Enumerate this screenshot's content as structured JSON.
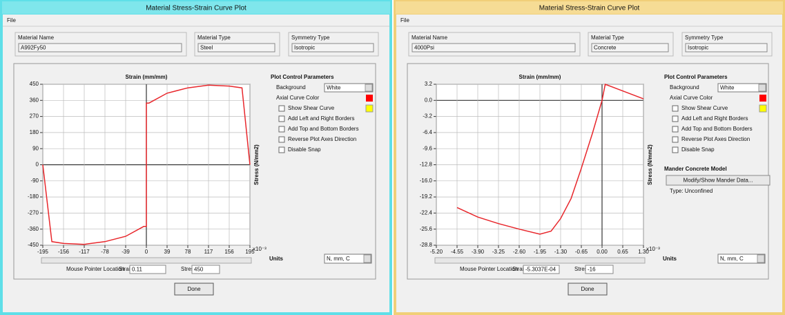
{
  "windows": [
    {
      "title": "Material Stress-Strain Curve Plot",
      "menu": "File",
      "fields": [
        {
          "label": "Material Name",
          "value": "A992Fy50"
        },
        {
          "label": "Material Type",
          "value": "Steel"
        },
        {
          "label": "Symmetry Type",
          "value": "Isotropic"
        }
      ],
      "controls": {
        "heading": "Plot Control Parameters",
        "background_label": "Background",
        "background_value": "White",
        "axial_label": "Axial Curve Color",
        "axial_color": "#ff0000",
        "shear_color": "#ffff00",
        "checkboxes": [
          "Show Shear Curve",
          "Add Left and Right Borders",
          "Add Top and Bottom Borders",
          "Reverse Plot Axes Direction",
          "Disable Snap"
        ]
      },
      "units_label": "Units",
      "units_value": "N, mm, C",
      "mouse": {
        "label": "Mouse Pointer Location",
        "strain_label": "Strain",
        "strain_value": "0.11",
        "stress_label": "Stress",
        "stress_value": "450"
      },
      "button": "Done",
      "chart_data": {
        "type": "line",
        "title": "Strain (mm/mm)",
        "y_label": "Stress (N/mm2)",
        "x_multiplier": "x10⁻³",
        "xlim": [
          -195,
          195
        ],
        "ylim": [
          -450,
          450
        ],
        "grid": true,
        "xticks": [
          -195,
          -156,
          -117,
          -78,
          -39,
          0,
          39,
          78,
          117,
          156,
          195
        ],
        "yticks": [
          -450,
          -360,
          -270,
          -180,
          -90,
          0,
          90,
          180,
          270,
          360,
          450
        ],
        "series": [
          {
            "color": "#e8262b",
            "x": [
              -195,
              -178,
              -156,
              -117,
              -78,
              -39,
              -5,
              0,
              0,
              5,
              39,
              78,
              117,
              156,
              180,
              195
            ],
            "values": [
              0,
              -430,
              -440,
              -445,
              -430,
              -400,
              -345,
              -345,
              345,
              345,
              400,
              430,
              445,
              440,
              430,
              0
            ]
          }
        ]
      }
    },
    {
      "title": "Material Stress-Strain Curve Plot",
      "menu": "File",
      "fields": [
        {
          "label": "Material Name",
          "value": "4000Psi"
        },
        {
          "label": "Material Type",
          "value": "Concrete"
        },
        {
          "label": "Symmetry Type",
          "value": "Isotropic"
        }
      ],
      "controls": {
        "heading": "Plot Control Parameters",
        "background_label": "Background",
        "background_value": "White",
        "axial_label": "Axial Curve Color",
        "axial_color": "#ff0000",
        "shear_color": "#ffff00",
        "checkboxes": [
          "Show Shear Curve",
          "Add Left and Right Borders",
          "Add Top and Bottom Borders",
          "Reverse Plot Axes Direction",
          "Disable Snap"
        ],
        "mander_heading": "Mander Concrete Model",
        "mander_button": "Modify/Show Mander Data...",
        "mander_type": "Type: Unconfined"
      },
      "units_label": "Units",
      "units_value": "N, mm, C",
      "mouse": {
        "label": "Mouse Pointer Location",
        "strain_label": "Strain",
        "strain_value": "-5.3037E-04",
        "stress_label": "Stress",
        "stress_value": "-16"
      },
      "button": "Done",
      "chart_data": {
        "type": "line",
        "title": "Strain (mm/mm)",
        "y_label": "Stress (N/mm2)",
        "x_multiplier": "x10⁻³",
        "xlim": [
          -5.2,
          1.3
        ],
        "ylim": [
          -28.8,
          3.2
        ],
        "grid": true,
        "xticks": [
          {
            "value": -5.2,
            "label": "-5.20"
          },
          {
            "value": -4.55,
            "label": "-4.55"
          },
          {
            "value": -3.9,
            "label": "-3.90"
          },
          {
            "value": -3.25,
            "label": "-3.25"
          },
          {
            "value": -2.6,
            "label": "-2.60"
          },
          {
            "value": -1.95,
            "label": "-1.95"
          },
          {
            "value": -1.3,
            "label": "-1.30"
          },
          {
            "value": -0.65,
            "label": "-0.65"
          },
          {
            "value": 0,
            "label": "0.00"
          },
          {
            "value": 0.65,
            "label": "0.65"
          },
          {
            "value": 1.3,
            "label": "1.30"
          }
        ],
        "yticks": [
          {
            "value": -28.8,
            "label": "-28.8"
          },
          {
            "value": -25.6,
            "label": "-25.6"
          },
          {
            "value": -22.4,
            "label": "-22.4"
          },
          {
            "value": -19.2,
            "label": "-19.2"
          },
          {
            "value": -16,
            "label": "-16.0"
          },
          {
            "value": -12.8,
            "label": "-12.8"
          },
          {
            "value": -9.6,
            "label": "-9.6"
          },
          {
            "value": -6.4,
            "label": "-6.4"
          },
          {
            "value": -3.2,
            "label": "-3.2"
          },
          {
            "value": 0,
            "label": "0.0"
          },
          {
            "value": 3.2,
            "label": "3.2"
          }
        ],
        "series": [
          {
            "color": "#e8262b",
            "x": [
              -4.55,
              -3.9,
              -3.25,
              -2.6,
              -1.95,
              -1.6,
              -1.3,
              -0.97,
              -0.65,
              -0.3,
              0,
              0.1,
              1.3
            ],
            "values": [
              -21.3,
              -23.2,
              -24.5,
              -25.6,
              -26.6,
              -26,
              -23.5,
              -19.5,
              -13.5,
              -6.5,
              0,
              3.2,
              0.3
            ]
          }
        ]
      }
    }
  ]
}
